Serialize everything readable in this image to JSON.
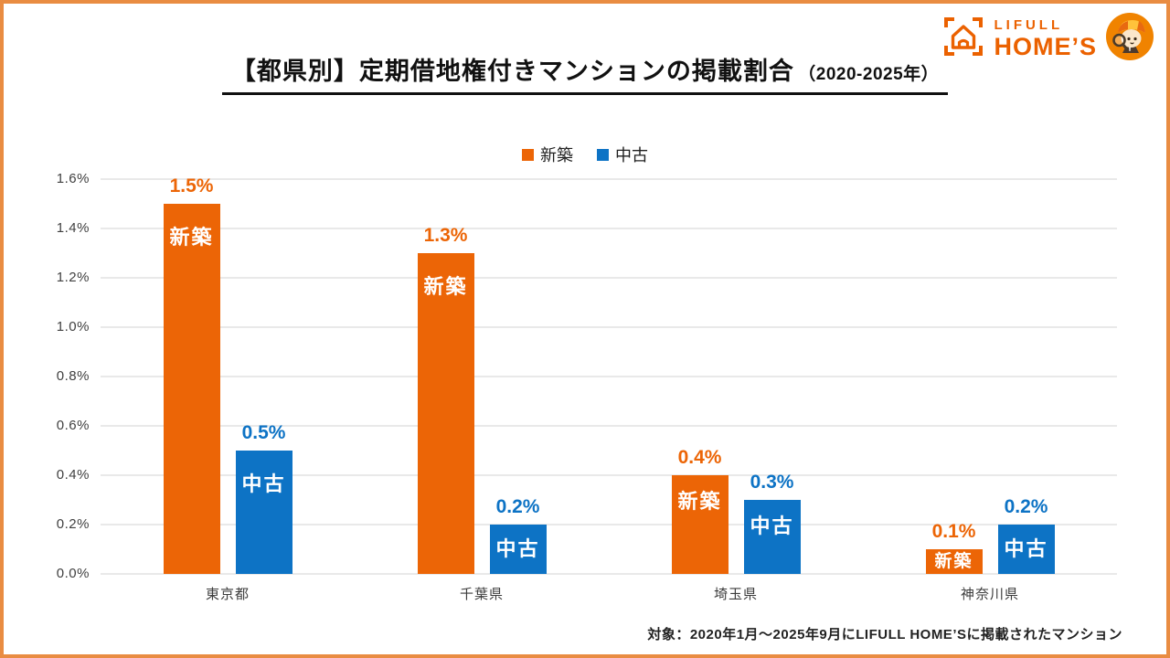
{
  "page": {
    "title_main": "【都県別】定期借地権付きマンションの掲載割合",
    "title_sub": "（2020-2025年）",
    "footer_note": "対象：2020年1月～2025年9月にLIFULL HOME’Sに掲載されたマンション"
  },
  "logo": {
    "brand_line1": "LIFULL",
    "brand_line2": "HOME’S",
    "brand_color": "#EB6100",
    "mascot": "homes-kun-mascot"
  },
  "colors": {
    "new_build": "#EC6506",
    "used": "#0D73C5",
    "grid": "#E9E9E9",
    "frame": "#E98C42",
    "title_text": "#111111"
  },
  "chart_data": {
    "type": "bar",
    "title": "【都県別】定期借地権付きマンションの掲載割合（2020-2025年）",
    "categories": [
      "東京都",
      "千葉県",
      "埼玉県",
      "神奈川県"
    ],
    "series": [
      {
        "name": "新築",
        "color": "#EC6506",
        "values": [
          1.5,
          1.3,
          0.4,
          0.1
        ],
        "value_labels": [
          "1.5%",
          "1.3%",
          "0.4%",
          "0.1%"
        ]
      },
      {
        "name": "中古",
        "color": "#0D73C5",
        "values": [
          0.5,
          0.2,
          0.3,
          0.2
        ],
        "value_labels": [
          "0.5%",
          "0.2%",
          "0.3%",
          "0.2%"
        ]
      }
    ],
    "xlabel": "",
    "ylabel": "",
    "ylim": [
      0,
      1.6
    ],
    "ytick_step": 0.2,
    "ytick_labels": [
      "0.0%",
      "0.2%",
      "0.4%",
      "0.6%",
      "0.8%",
      "1.0%",
      "1.2%",
      "1.4%",
      "1.6%"
    ],
    "grid": true,
    "legend_position": "top",
    "bar_inner_labels": true
  }
}
